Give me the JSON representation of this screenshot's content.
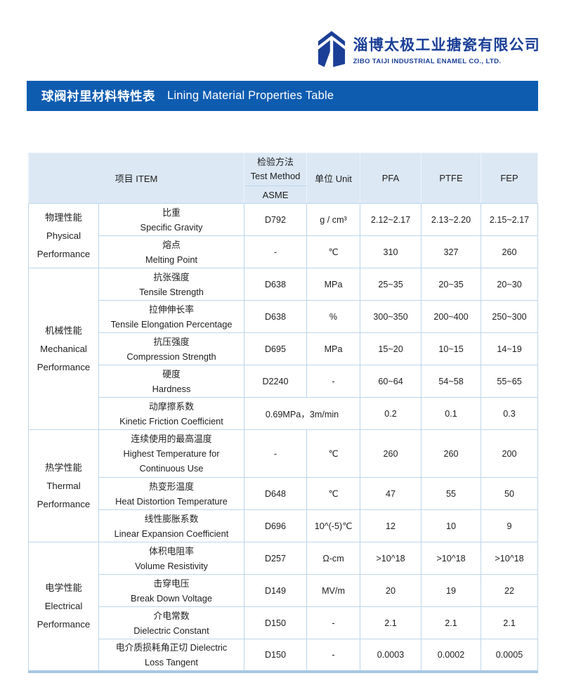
{
  "logo": {
    "company_cn": "淄博太极工业搪瓷有限公司",
    "company_en": "ZIBO TAIJI INDUSTRIAL ENAMEL CO., LTD.",
    "brand_color": "#1b3f97"
  },
  "banner": {
    "title_cn": "球阀衬里材料特性表",
    "title_en": "Lining Material Properties Table",
    "bg_color": "#0e5cb0"
  },
  "table": {
    "header_bg_color": "#dce8f4",
    "border_color": "#bcd6ec",
    "header": {
      "item": "项目 ITEM",
      "method_cn": "检验方法",
      "method_en": "Test Method",
      "standard": "ASME",
      "unit": "单位  Unit",
      "materials": [
        "PFA",
        "PTFE",
        "FEP"
      ]
    },
    "groups": [
      {
        "category": [
          "物理性能",
          "Physical",
          "Performance"
        ],
        "rows": [
          {
            "item": [
              "比重",
              "Specific Gravity"
            ],
            "method": "D792",
            "unit": "g / cm³",
            "values": [
              "2.12~2.17",
              "2.13~2.20",
              "2.15~2.17"
            ]
          },
          {
            "item": [
              "熔点",
              "Melting Point"
            ],
            "method": "-",
            "unit": "℃",
            "values": [
              "310",
              "327",
              "260"
            ]
          }
        ]
      },
      {
        "category": [
          "机械性能",
          "Mechanical",
          "Performance"
        ],
        "rows": [
          {
            "item": [
              "抗张强度",
              "Tensile Strength"
            ],
            "method": "D638",
            "unit": "MPa",
            "values": [
              "25~35",
              "20~35",
              "20~30"
            ]
          },
          {
            "item": [
              "拉伸伸长率",
              "Tensile Elongation Percentage"
            ],
            "method": "D638",
            "unit": "%",
            "values": [
              "300~350",
              "200~400",
              "250~300"
            ]
          },
          {
            "item": [
              "抗压强度",
              "Compression Strength"
            ],
            "method": "D695",
            "unit": "MPa",
            "values": [
              "15~20",
              "10~15",
              "14~19"
            ]
          },
          {
            "item": [
              "硬度",
              "Hardness"
            ],
            "method": "D2240",
            "unit": "-",
            "values": [
              "60~64",
              "54~58",
              "55~65"
            ]
          },
          {
            "item": [
              "动摩擦系数",
              "Kinetic Friction Coefficient"
            ],
            "method_unit": "0.69MPa，3m/min",
            "values": [
              "0.2",
              "0.1",
              "0.3"
            ]
          }
        ]
      },
      {
        "category": [
          "热学性能",
          "Thermal",
          "Performance"
        ],
        "rows": [
          {
            "item": [
              "连续使用的最高温度",
              "Highest Temperature for",
              "Continuous Use"
            ],
            "tall": true,
            "method": "-",
            "unit": "℃",
            "values": [
              "260",
              "260",
              "200"
            ]
          },
          {
            "item": [
              "热变形温度",
              "Heat Distortion Temperature"
            ],
            "method": "D648",
            "unit": "℃",
            "values": [
              "47",
              "55",
              "50"
            ]
          },
          {
            "item": [
              "线性膨胀系数",
              "Linear Expansion Coefficient"
            ],
            "method": "D696",
            "unit": "10^(-5)℃",
            "values": [
              "12",
              "10",
              "9"
            ]
          }
        ]
      },
      {
        "category": [
          "电学性能",
          "Electrical",
          "Performance"
        ],
        "rows": [
          {
            "item": [
              "体积电阻率",
              "Volume Resistivity"
            ],
            "method": "D257",
            "unit": "Ω-cm",
            "values": [
              ">10^18",
              ">10^18",
              ">10^18"
            ]
          },
          {
            "item": [
              "击穿电压",
              "Break Down Voltage"
            ],
            "method": "D149",
            "unit": "MV/m",
            "values": [
              "20",
              "19",
              "22"
            ]
          },
          {
            "item": [
              "介电常数",
              "Dielectric Constant"
            ],
            "method": "D150",
            "unit": "-",
            "values": [
              "2.1",
              "2.1",
              "2.1"
            ]
          },
          {
            "item": [
              "电介质损耗角正切 Dielectric",
              "Loss Tangent"
            ],
            "method": "D150",
            "unit": "-",
            "values": [
              "0.0003",
              "0.0002",
              "0.0005"
            ]
          }
        ]
      }
    ]
  }
}
